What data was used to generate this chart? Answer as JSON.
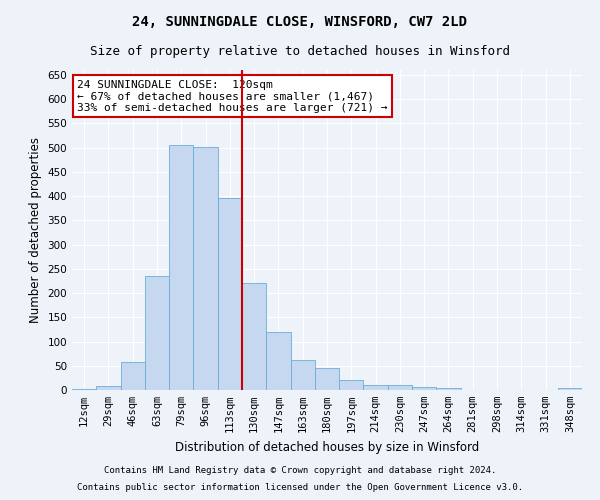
{
  "title": "24, SUNNINGDALE CLOSE, WINSFORD, CW7 2LD",
  "subtitle": "Size of property relative to detached houses in Winsford",
  "xlabel": "Distribution of detached houses by size in Winsford",
  "ylabel": "Number of detached properties",
  "footer_line1": "Contains HM Land Registry data © Crown copyright and database right 2024.",
  "footer_line2": "Contains public sector information licensed under the Open Government Licence v3.0.",
  "categories": [
    "12sqm",
    "29sqm",
    "46sqm",
    "63sqm",
    "79sqm",
    "96sqm",
    "113sqm",
    "130sqm",
    "147sqm",
    "163sqm",
    "180sqm",
    "197sqm",
    "214sqm",
    "230sqm",
    "247sqm",
    "264sqm",
    "281sqm",
    "298sqm",
    "314sqm",
    "331sqm",
    "348sqm"
  ],
  "values": [
    3,
    8,
    58,
    236,
    506,
    501,
    396,
    221,
    120,
    62,
    46,
    20,
    11,
    10,
    7,
    5,
    0,
    0,
    0,
    0,
    5
  ],
  "bar_color": "#c5d8f0",
  "bar_edge_color": "#6baed6",
  "vline_x": 6.5,
  "vline_color": "#cc0000",
  "annotation_text": "24 SUNNINGDALE CLOSE:  120sqm\n← 67% of detached houses are smaller (1,467)\n33% of semi-detached houses are larger (721) →",
  "annotation_box_color": "#cc0000",
  "annotation_box_fill": "#ffffff",
  "ylim": [
    0,
    660
  ],
  "yticks": [
    0,
    50,
    100,
    150,
    200,
    250,
    300,
    350,
    400,
    450,
    500,
    550,
    600,
    650
  ],
  "bg_color": "#eef2f9",
  "plot_bg_color": "#eef2f9",
  "grid_color": "#ffffff",
  "title_fontsize": 10,
  "subtitle_fontsize": 9,
  "axis_label_fontsize": 8.5,
  "tick_fontsize": 7.5,
  "annotation_fontsize": 8,
  "footer_fontsize": 6.5
}
